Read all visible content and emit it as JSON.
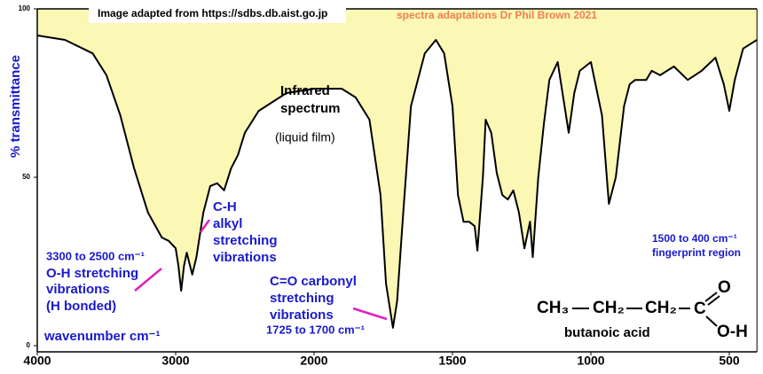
{
  "chart_data": {
    "type": "line",
    "x_label": "wavenumber  cm⁻¹",
    "y_label": "% transmittance",
    "color": "#000000",
    "fill_color": "#fbf7b4",
    "xlim": [
      4000,
      400
    ],
    "xticks": [
      4000,
      3000,
      2000,
      1500,
      1000,
      500
    ],
    "ylim": [
      0,
      100
    ],
    "yticks": [
      0,
      50,
      100
    ],
    "x": [
      4000,
      3800,
      3600,
      3500,
      3400,
      3300,
      3200,
      3100,
      3050,
      3000,
      2980,
      2960,
      2940,
      2920,
      2880,
      2850,
      2800,
      2750,
      2700,
      2650,
      2600,
      2550,
      2500,
      2400,
      2200,
      2000,
      1900,
      1850,
      1800,
      1760,
      1740,
      1715,
      1700,
      1680,
      1650,
      1600,
      1560,
      1530,
      1500,
      1480,
      1460,
      1440,
      1420,
      1410,
      1390,
      1380,
      1360,
      1340,
      1320,
      1300,
      1280,
      1260,
      1240,
      1220,
      1210,
      1190,
      1170,
      1150,
      1120,
      1100,
      1080,
      1060,
      1040,
      1000,
      960,
      935,
      910,
      880,
      860,
      840,
      800,
      780,
      750,
      700,
      650,
      600,
      550,
      520,
      500,
      480,
      450,
      400
    ],
    "values": [
      92.1,
      90.8,
      86.8,
      80.3,
      68.4,
      52.6,
      39.5,
      32.1,
      31.1,
      28.9,
      23.7,
      16.3,
      23.7,
      27.6,
      21.1,
      26.3,
      39.5,
      47.4,
      48.2,
      46.1,
      52.6,
      56.6,
      63.2,
      69.7,
      75,
      76.3,
      76.3,
      73.7,
      67.1,
      44.7,
      18.4,
      5.3,
      13.2,
      36.8,
      71.1,
      86.8,
      90.8,
      86.8,
      71.1,
      44.7,
      36.8,
      36.8,
      35.5,
      28.2,
      50,
      67.1,
      63.2,
      51.3,
      44.7,
      43.4,
      46.1,
      39.5,
      28.9,
      36.8,
      26.3,
      50,
      65.8,
      78.9,
      84.2,
      73.7,
      63.2,
      75,
      81.6,
      84.2,
      68.4,
      42.1,
      50,
      71.1,
      77.6,
      78.9,
      78.9,
      81.6,
      80.3,
      82.9,
      78.9,
      81.6,
      85.5,
      77.6,
      69.7,
      78.9,
      88.2,
      90.8
    ],
    "annotations": [
      "Image adapted from https://sdbs.db.aist.go.jp",
      "spectra adaptations Dr Phil Brown 2021",
      "Infrared",
      "spectrum",
      "(liquid film)",
      "C-H",
      "alkyl",
      "stretching",
      "vibrations",
      "3300 to 2500 cm⁻¹",
      "O-H stretching",
      "vibrations",
      "(H bonded)",
      "C=O carbonyl",
      "stretching",
      "vibrations",
      "1725 to 1700 cm⁻¹",
      "1500 to 400 cm⁻¹",
      "fingerprint region"
    ],
    "structure": {
      "groups": [
        "CH₃",
        "CH₂",
        "CH₂",
        "C",
        "O",
        "O-H"
      ],
      "name": "butanoic acid"
    }
  }
}
